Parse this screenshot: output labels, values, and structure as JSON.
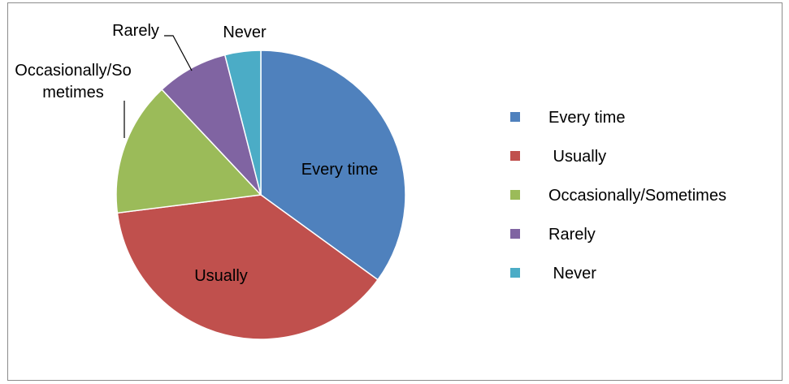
{
  "chart_data": {
    "type": "pie",
    "title": "",
    "categories": [
      "Every time",
      " Usually",
      "Occasionally/Sometimes",
      "Rarely",
      " Never"
    ],
    "values": [
      35,
      38,
      15,
      8,
      4
    ],
    "colors": [
      "#4f81bd",
      "#c0504d",
      "#9bbb59",
      "#8064a2",
      "#4bacc6"
    ],
    "slice_labels": [
      "Every time",
      "Usually",
      "Occasionally/So\nmetimes",
      "Rarely",
      "Never"
    ],
    "legend_placement": "right"
  }
}
